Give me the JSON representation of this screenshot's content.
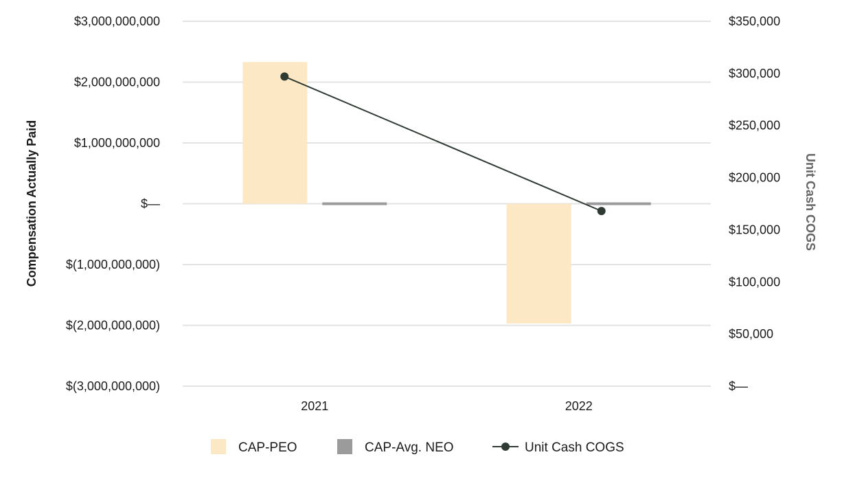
{
  "chart_data": {
    "type": "bar",
    "categories": [
      "2021",
      "2022"
    ],
    "series": [
      {
        "name": "CAP-PEO",
        "axis": "left",
        "kind": "bar",
        "color": "#fde8c6",
        "values": [
          2330000000,
          -1970000000
        ]
      },
      {
        "name": "CAP-Avg. NEO",
        "axis": "left",
        "kind": "bar",
        "color": "#9b9b9b",
        "values": [
          20000000,
          -30000000
        ]
      },
      {
        "name": "Unit Cash COGS",
        "axis": "right",
        "kind": "line",
        "color": "#2f3a33",
        "values": [
          297000,
          168000
        ]
      }
    ],
    "ylabel": "Compensation Actually Paid",
    "y2label": "Unit Cash COGS",
    "ylim": [
      -3000000000,
      3000000000
    ],
    "y2lim": [
      0,
      350000
    ],
    "yticks": [
      3000000000,
      2000000000,
      1000000000,
      0,
      -1000000000,
      -2000000000,
      -3000000000
    ],
    "ytick_labels": [
      "$3,000,000,000",
      "$2,000,000,000",
      "$1,000,000,000",
      "$—",
      "$(1,000,000,000)",
      "$(2,000,000,000)",
      "$(3,000,000,000)"
    ],
    "y2ticks": [
      350000,
      300000,
      250000,
      200000,
      150000,
      100000,
      50000,
      0
    ],
    "y2tick_labels": [
      "$350,000",
      "$300,000",
      "$250,000",
      "$200,000",
      "$150,000",
      "$100,000",
      "$50,000",
      "$—"
    ],
    "grid": true,
    "legend_position": "bottom",
    "gridline_color": "#e3e3e3",
    "y2label_color": "#666666"
  }
}
